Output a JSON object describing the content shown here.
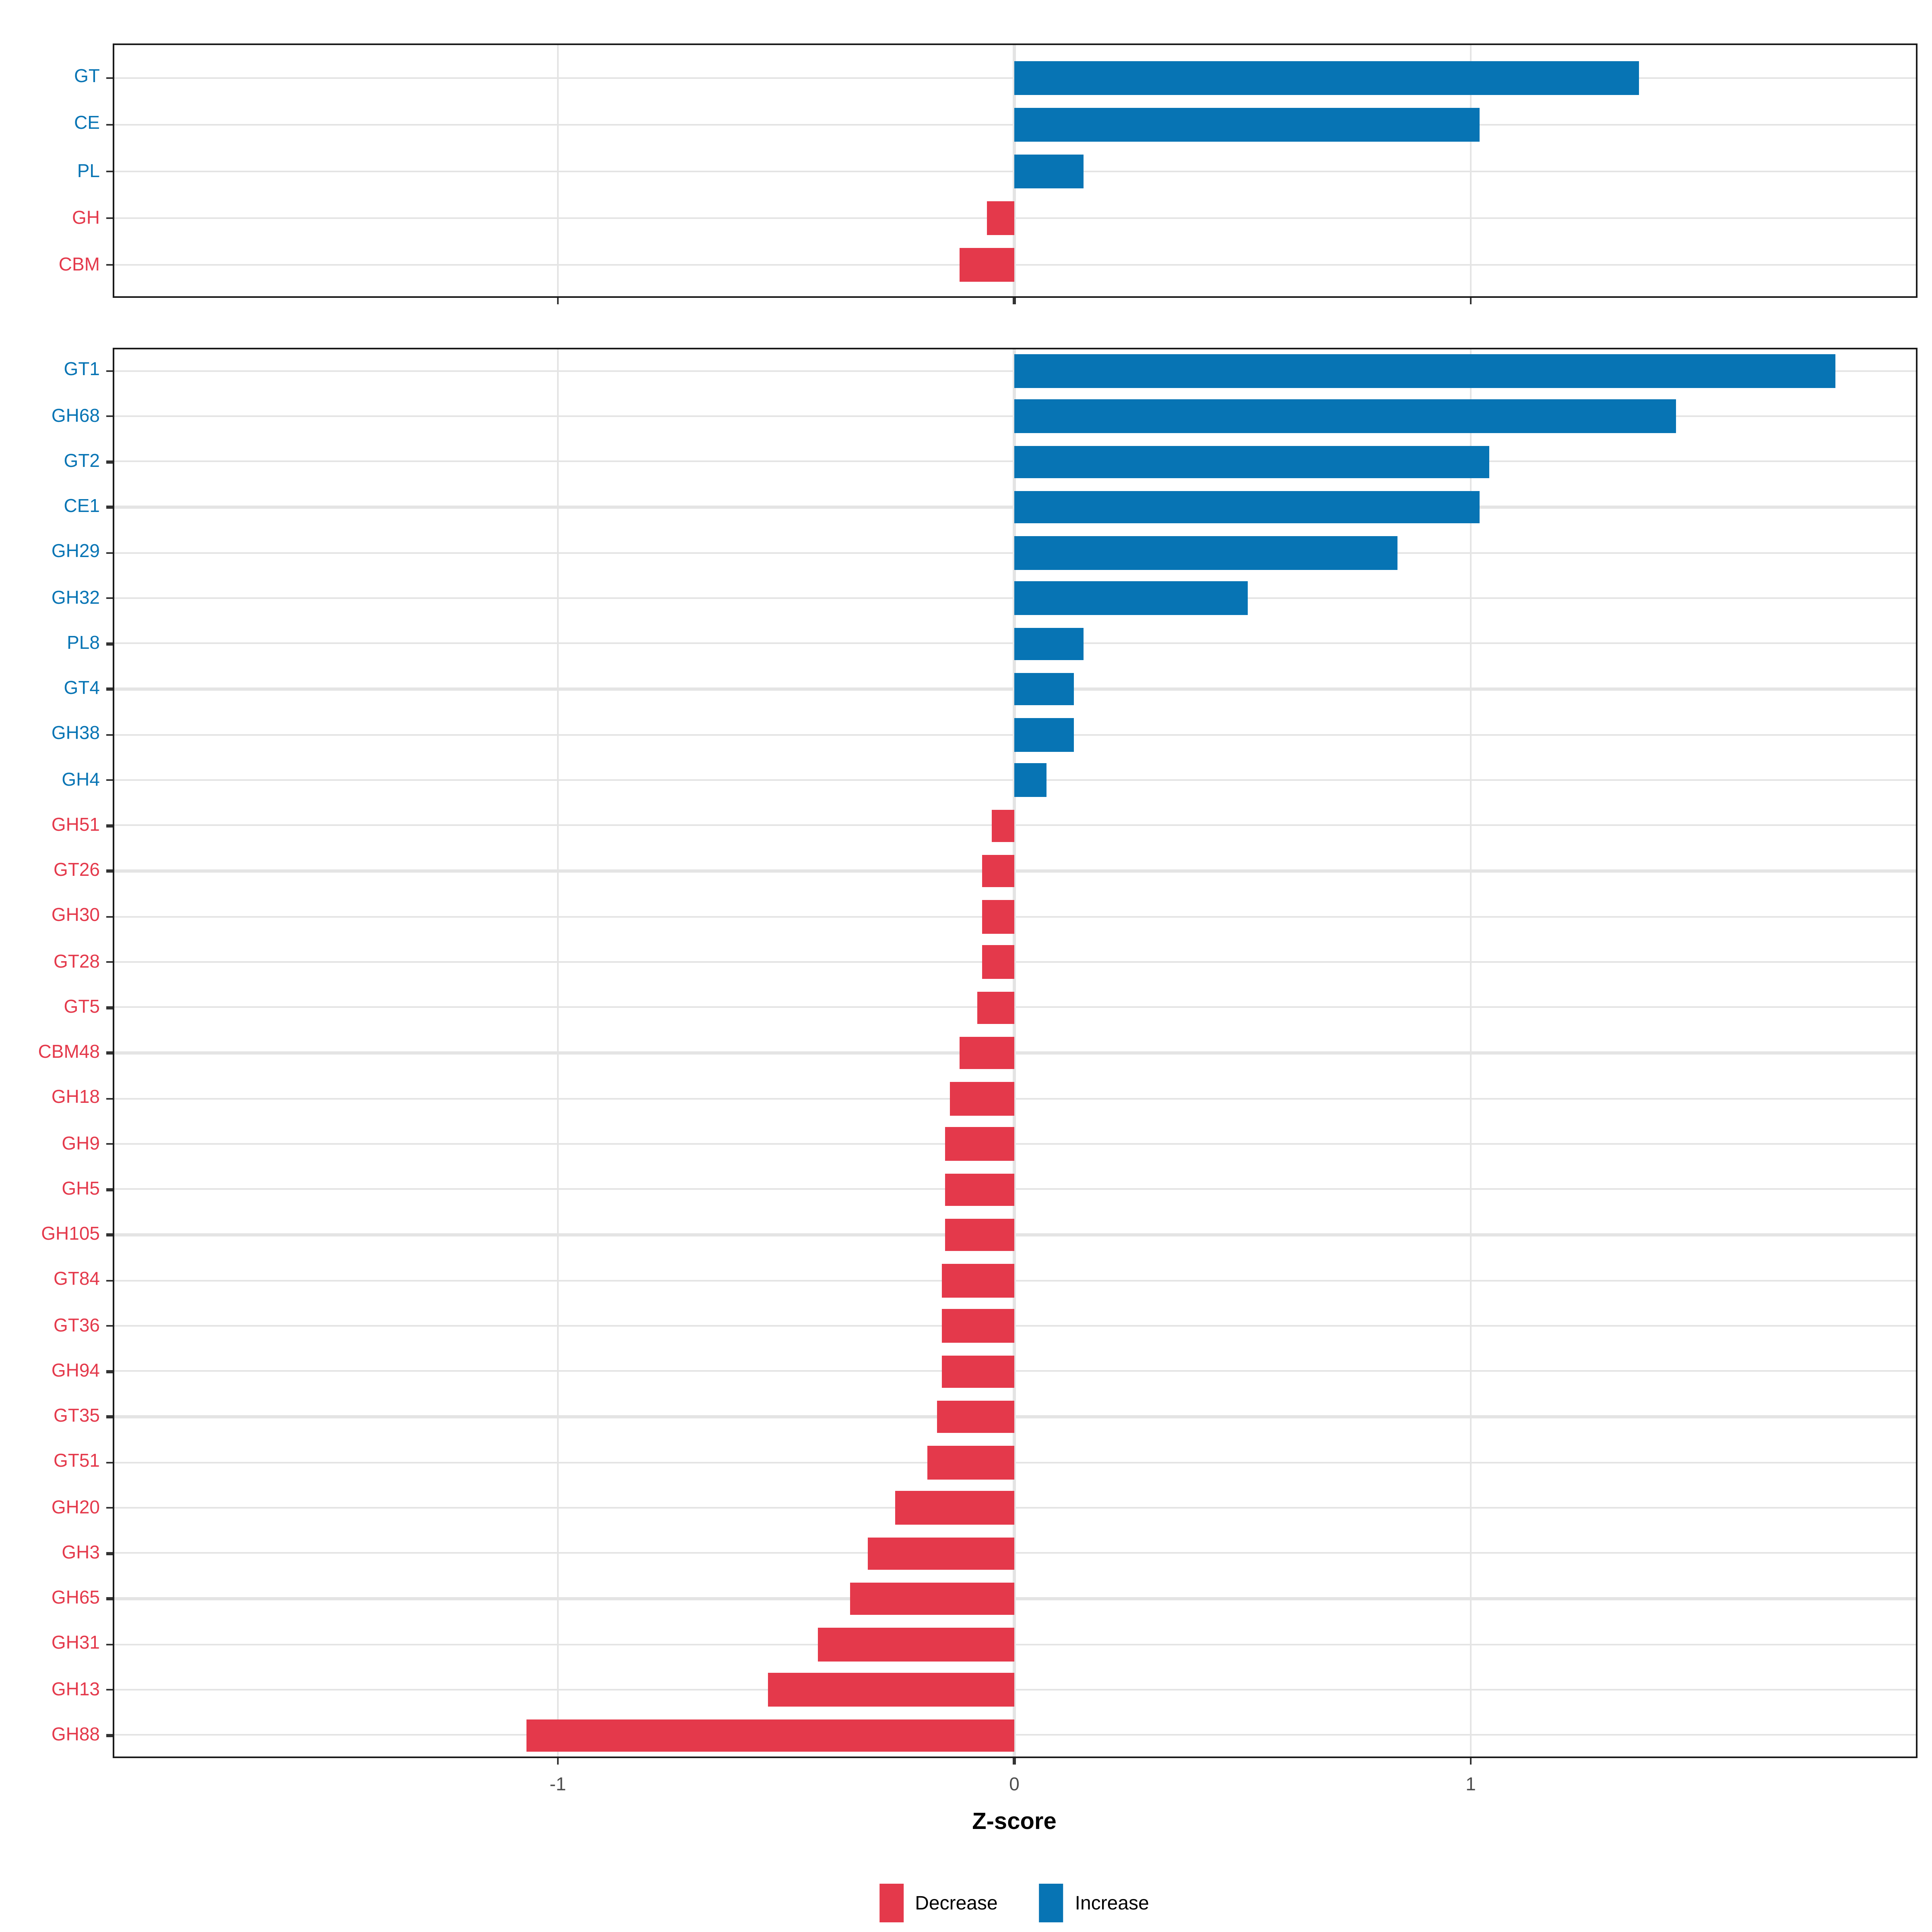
{
  "figure": {
    "xlabel": "Z-score",
    "x_ticks": [
      "-1",
      "0",
      "1"
    ],
    "x_tick_values": [
      -1,
      0,
      1
    ],
    "legend": {
      "items": [
        {
          "label": "Decrease",
          "color": "#E4394B"
        },
        {
          "label": "Increase",
          "color": "#0774B4"
        }
      ]
    },
    "colors": {
      "increase": "#0774B4",
      "decrease": "#E4394B",
      "grid": "#E4E4E4",
      "panel_border": "#1A1A1A",
      "tick": "#333333",
      "tick_label": "#4D4D4D",
      "axis_title": "#000000"
    }
  },
  "chart_data": [
    {
      "type": "bar",
      "panel": "cazyme-classes",
      "orientation": "horizontal",
      "title": "",
      "xlabel": "Z-score",
      "ylabel": "",
      "xlim": [
        -1.98,
        1.98
      ],
      "x_ticks": [
        -1,
        0,
        1
      ],
      "grid": true,
      "legend_position": "bottom",
      "categories": [
        "GT",
        "CE",
        "PL",
        "GH",
        "CBM"
      ],
      "values": [
        1.37,
        1.02,
        0.15,
        -0.06,
        -0.12
      ],
      "directions": [
        "Increase",
        "Increase",
        "Increase",
        "Decrease",
        "Decrease"
      ]
    },
    {
      "type": "bar",
      "panel": "cazyme-families",
      "orientation": "horizontal",
      "title": "",
      "xlabel": "Z-score",
      "ylabel": "",
      "xlim": [
        -1.98,
        1.98
      ],
      "x_ticks": [
        -1,
        0,
        1
      ],
      "grid": true,
      "legend_position": "bottom",
      "categories": [
        "GT1",
        "GH68",
        "GT2",
        "CE1",
        "GH29",
        "GH32",
        "PL8",
        "GT4",
        "GH38",
        "GH4",
        "GH51",
        "GT26",
        "GH30",
        "GT28",
        "GT5",
        "CBM48",
        "GH18",
        "GH9",
        "GH5",
        "GH105",
        "GT84",
        "GT36",
        "GH94",
        "GT35",
        "GT51",
        "GH20",
        "GH3",
        "GH65",
        "GH31",
        "GH13",
        "GH88"
      ],
      "values": [
        1.8,
        1.45,
        1.04,
        1.02,
        0.84,
        0.51,
        0.15,
        0.13,
        0.13,
        0.07,
        -0.05,
        -0.07,
        -0.07,
        -0.07,
        -0.08,
        -0.12,
        -0.14,
        -0.15,
        -0.15,
        -0.15,
        -0.16,
        -0.16,
        -0.16,
        -0.17,
        -0.19,
        -0.26,
        -0.32,
        -0.36,
        -0.43,
        -0.54,
        -1.07
      ],
      "directions": [
        "Increase",
        "Increase",
        "Increase",
        "Increase",
        "Increase",
        "Increase",
        "Increase",
        "Increase",
        "Increase",
        "Increase",
        "Decrease",
        "Decrease",
        "Decrease",
        "Decrease",
        "Decrease",
        "Decrease",
        "Decrease",
        "Decrease",
        "Decrease",
        "Decrease",
        "Decrease",
        "Decrease",
        "Decrease",
        "Decrease",
        "Decrease",
        "Decrease",
        "Decrease",
        "Decrease",
        "Decrease",
        "Decrease",
        "Decrease"
      ]
    }
  ]
}
